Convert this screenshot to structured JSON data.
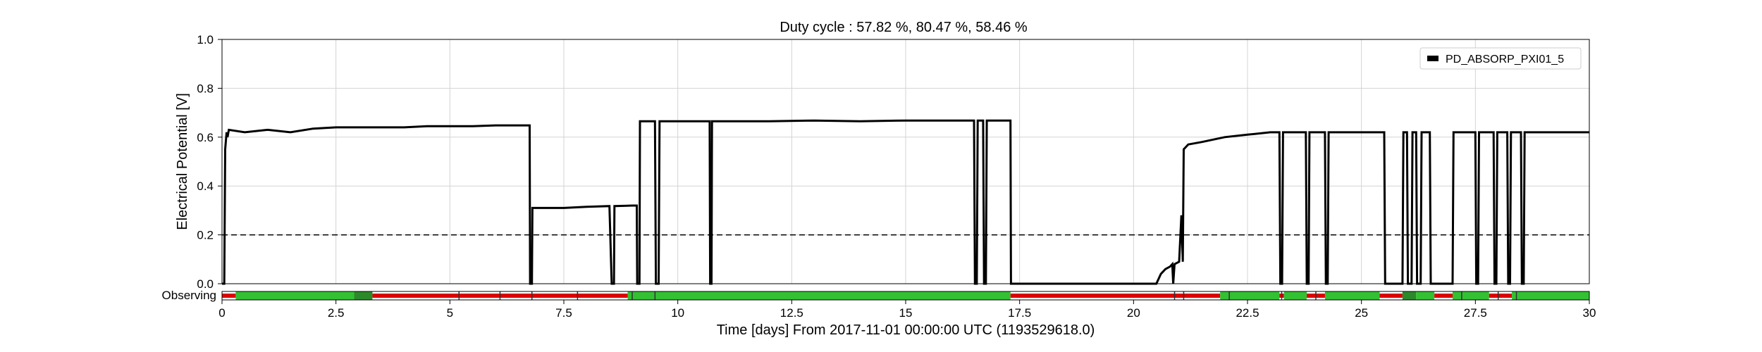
{
  "chart_data": {
    "type": "line",
    "title": "Duty cycle : 57.82 %, 80.47 %, 58.46 %",
    "xlabel": "Time [days] From 2017-11-01 00:00:00 UTC (1193529618.0)",
    "ylabel": "Electrical Potential [V]",
    "xlim": [
      0,
      30
    ],
    "ylim": [
      0,
      1.0
    ],
    "x_ticks": [
      0,
      2.5,
      5,
      7.5,
      10,
      12.5,
      15,
      17.5,
      20,
      22.5,
      25,
      27.5,
      30
    ],
    "x_tick_labels": [
      "0",
      "2.5",
      "5",
      "7.5",
      "10",
      "12.5",
      "15",
      "17.5",
      "20",
      "22.5",
      "25",
      "27.5",
      "30"
    ],
    "y_ticks": [
      0,
      0.2,
      0.4,
      0.6,
      0.8,
      1.0
    ],
    "y_tick_labels": [
      "0.0",
      "0.2",
      "0.4",
      "0.6",
      "0.8",
      "1.0"
    ],
    "grid": true,
    "legend": {
      "position": "top-right",
      "entries": [
        "PD_ABSORP_PXI01_5"
      ]
    },
    "threshold": {
      "y": 0.2,
      "style": "dashed"
    },
    "series": [
      {
        "name": "PD_ABSORP_PXI01_5",
        "color": "#000000",
        "points": [
          [
            0.0,
            0.0
          ],
          [
            0.05,
            0.0
          ],
          [
            0.07,
            0.55
          ],
          [
            0.1,
            0.62
          ],
          [
            0.12,
            0.6
          ],
          [
            0.15,
            0.63
          ],
          [
            0.5,
            0.62
          ],
          [
            1.0,
            0.63
          ],
          [
            1.5,
            0.62
          ],
          [
            2.0,
            0.635
          ],
          [
            2.5,
            0.64
          ],
          [
            3.0,
            0.64
          ],
          [
            3.5,
            0.64
          ],
          [
            4.0,
            0.64
          ],
          [
            4.5,
            0.645
          ],
          [
            5.0,
            0.645
          ],
          [
            5.5,
            0.645
          ],
          [
            6.0,
            0.648
          ],
          [
            6.5,
            0.648
          ],
          [
            6.75,
            0.648
          ],
          [
            6.76,
            0.0
          ],
          [
            6.8,
            0.0
          ],
          [
            6.81,
            0.31
          ],
          [
            7.0,
            0.31
          ],
          [
            7.5,
            0.31
          ],
          [
            8.0,
            0.315
          ],
          [
            8.5,
            0.318
          ],
          [
            8.55,
            0.0
          ],
          [
            8.6,
            0.0
          ],
          [
            8.61,
            0.318
          ],
          [
            9.0,
            0.32
          ],
          [
            9.1,
            0.32
          ],
          [
            9.11,
            0.0
          ],
          [
            9.16,
            0.0
          ],
          [
            9.17,
            0.665
          ],
          [
            9.5,
            0.665
          ],
          [
            9.52,
            0.0
          ],
          [
            9.58,
            0.0
          ],
          [
            9.6,
            0.665
          ],
          [
            10.0,
            0.665
          ],
          [
            10.5,
            0.665
          ],
          [
            10.7,
            0.665
          ],
          [
            10.71,
            0.0
          ],
          [
            10.74,
            0.0
          ],
          [
            10.75,
            0.665
          ],
          [
            11.0,
            0.665
          ],
          [
            12.0,
            0.665
          ],
          [
            13.0,
            0.668
          ],
          [
            14.0,
            0.665
          ],
          [
            15.0,
            0.668
          ],
          [
            16.0,
            0.668
          ],
          [
            16.5,
            0.668
          ],
          [
            16.52,
            0.0
          ],
          [
            16.56,
            0.0
          ],
          [
            16.58,
            0.668
          ],
          [
            16.7,
            0.668
          ],
          [
            16.72,
            0.0
          ],
          [
            16.76,
            0.0
          ],
          [
            16.78,
            0.668
          ],
          [
            17.3,
            0.668
          ],
          [
            17.31,
            0.0
          ],
          [
            19.5,
            0.0
          ],
          [
            20.5,
            0.0
          ],
          [
            20.6,
            0.04
          ],
          [
            20.7,
            0.06
          ],
          [
            20.8,
            0.07
          ],
          [
            20.85,
            0.08
          ],
          [
            20.87,
            0.0
          ],
          [
            20.9,
            0.08
          ],
          [
            21.0,
            0.09
          ],
          [
            21.05,
            0.28
          ],
          [
            21.08,
            0.09
          ],
          [
            21.1,
            0.55
          ],
          [
            21.2,
            0.57
          ],
          [
            21.5,
            0.58
          ],
          [
            22.0,
            0.6
          ],
          [
            22.5,
            0.61
          ],
          [
            23.0,
            0.62
          ],
          [
            23.2,
            0.62
          ],
          [
            23.22,
            0.0
          ],
          [
            23.26,
            0.0
          ],
          [
            23.28,
            0.62
          ],
          [
            23.78,
            0.62
          ],
          [
            23.8,
            0.0
          ],
          [
            23.84,
            0.0
          ],
          [
            23.86,
            0.62
          ],
          [
            24.2,
            0.62
          ],
          [
            24.22,
            0.0
          ],
          [
            24.26,
            0.0
          ],
          [
            24.28,
            0.62
          ],
          [
            25.0,
            0.62
          ],
          [
            25.5,
            0.62
          ],
          [
            25.52,
            0.0
          ],
          [
            25.9,
            0.0
          ],
          [
            25.92,
            0.62
          ],
          [
            26.0,
            0.62
          ],
          [
            26.02,
            0.0
          ],
          [
            26.1,
            0.0
          ],
          [
            26.12,
            0.62
          ],
          [
            26.2,
            0.62
          ],
          [
            26.22,
            0.0
          ],
          [
            26.3,
            0.0
          ],
          [
            26.32,
            0.62
          ],
          [
            26.5,
            0.62
          ],
          [
            26.52,
            0.0
          ],
          [
            27.0,
            0.0
          ],
          [
            27.02,
            0.62
          ],
          [
            27.5,
            0.62
          ],
          [
            27.52,
            0.0
          ],
          [
            27.56,
            0.0
          ],
          [
            27.58,
            0.62
          ],
          [
            27.9,
            0.62
          ],
          [
            27.92,
            0.0
          ],
          [
            27.96,
            0.0
          ],
          [
            27.98,
            0.62
          ],
          [
            28.2,
            0.62
          ],
          [
            28.22,
            0.0
          ],
          [
            28.26,
            0.0
          ],
          [
            28.28,
            0.62
          ],
          [
            28.5,
            0.62
          ],
          [
            28.52,
            0.0
          ],
          [
            28.56,
            0.0
          ],
          [
            28.58,
            0.62
          ],
          [
            29.0,
            0.62
          ],
          [
            30.0,
            0.62
          ]
        ]
      }
    ],
    "state_bar": {
      "label": "Observing",
      "colors": {
        "on": "#33c033",
        "on_dark": "#2a8a2a",
        "off": "#dd0000"
      },
      "segments": [
        {
          "start": 0.0,
          "end": 0.3,
          "state": "off"
        },
        {
          "start": 0.3,
          "end": 2.9,
          "state": "on"
        },
        {
          "start": 2.9,
          "end": 3.3,
          "state": "on_dark"
        },
        {
          "start": 3.3,
          "end": 8.9,
          "state": "off"
        },
        {
          "start": 8.9,
          "end": 17.3,
          "state": "on"
        },
        {
          "start": 17.3,
          "end": 21.9,
          "state": "off"
        },
        {
          "start": 21.9,
          "end": 23.2,
          "state": "on"
        },
        {
          "start": 23.2,
          "end": 23.3,
          "state": "off"
        },
        {
          "start": 23.3,
          "end": 23.8,
          "state": "on"
        },
        {
          "start": 23.8,
          "end": 24.2,
          "state": "off"
        },
        {
          "start": 24.2,
          "end": 25.4,
          "state": "on"
        },
        {
          "start": 25.4,
          "end": 25.9,
          "state": "off"
        },
        {
          "start": 25.9,
          "end": 26.2,
          "state": "on_dark"
        },
        {
          "start": 26.2,
          "end": 26.6,
          "state": "on"
        },
        {
          "start": 26.6,
          "end": 27.0,
          "state": "off"
        },
        {
          "start": 27.0,
          "end": 27.8,
          "state": "on"
        },
        {
          "start": 27.8,
          "end": 28.3,
          "state": "off"
        },
        {
          "start": 28.3,
          "end": 30.0,
          "state": "on"
        }
      ],
      "ticks": [
        5.2,
        6.1,
        6.8,
        7.8,
        9.0,
        9.5,
        20.9,
        21.1,
        22.1,
        23.25,
        24.0,
        27.2,
        28.0,
        28.4
      ]
    }
  }
}
